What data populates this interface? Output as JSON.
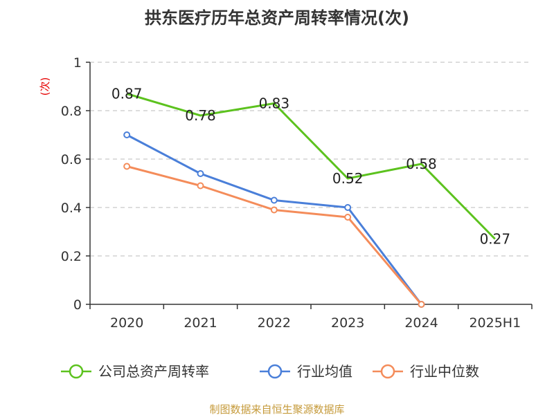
{
  "chart_data": {
    "type": "line",
    "title": "拱东医疗历年总资产周转率情况(次)",
    "ylabel": "(次)",
    "xlabel": "",
    "categories": [
      "2020",
      "2021",
      "2022",
      "2023",
      "2024",
      "2025H1"
    ],
    "ylim": [
      0,
      1
    ],
    "yticks": [
      0,
      0.2,
      0.4,
      0.6,
      0.8,
      1
    ],
    "ytick_labels": [
      "0",
      "0.2",
      "0.4",
      "0.6",
      "0.8",
      "1"
    ],
    "grid": true,
    "legend_position": "bottom",
    "series": [
      {
        "name": "公司总资产周转率",
        "color": "#5cc21e",
        "values": [
          0.87,
          0.78,
          0.83,
          0.52,
          0.58,
          0.27
        ],
        "data_labels": [
          "0.87",
          "0.78",
          "0.83",
          "0.52",
          "0.58",
          "0.27"
        ],
        "markers": false
      },
      {
        "name": "行业均值",
        "color": "#4a7fd9",
        "values": [
          0.7,
          0.54,
          0.43,
          0.4,
          0.0,
          null
        ],
        "markers": true
      },
      {
        "name": "行业中位数",
        "color": "#f48c5a",
        "values": [
          0.57,
          0.49,
          0.39,
          0.36,
          0.0,
          null
        ],
        "markers": true
      }
    ],
    "source": "制图数据来自恒生聚源数据库"
  }
}
